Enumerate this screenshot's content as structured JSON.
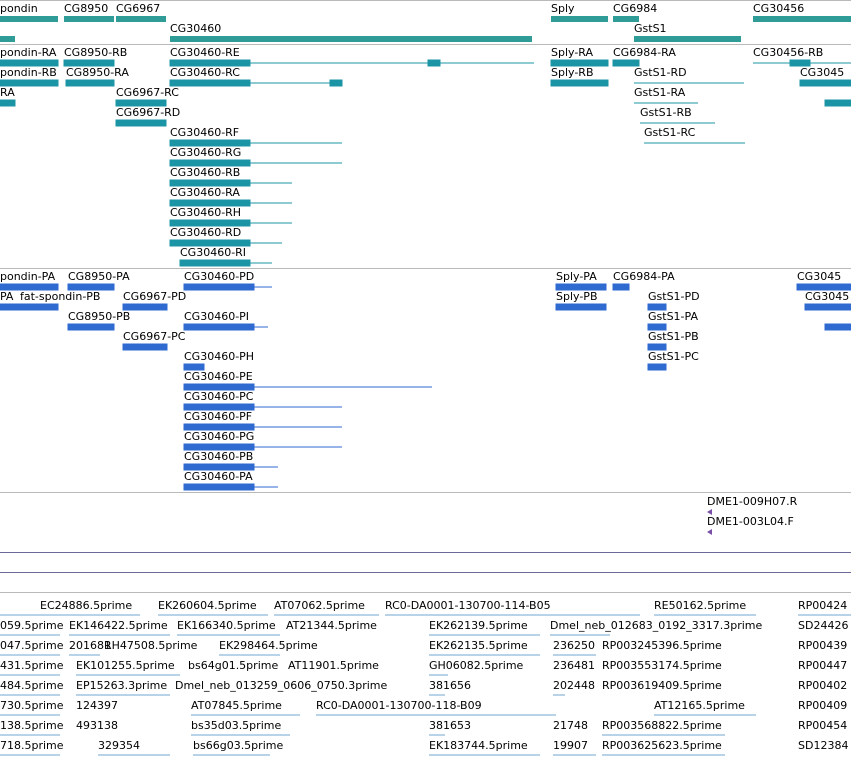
{
  "colors": {
    "gene": "#2f9c98",
    "transcript": "#1b95a6",
    "protein": "#2f6ad0",
    "clone": "#7a4fa6",
    "est": "#71a5d0",
    "separator": "#b9b9b9",
    "rule": "#6a6a9a"
  },
  "tracks": {
    "genes": [
      {
        "label": "pondin"
      },
      {
        "label": "CG8950"
      },
      {
        "label": "CG6967"
      },
      {
        "label": "CG30460"
      },
      {
        "label": "Sply"
      },
      {
        "label": "CG6984"
      },
      {
        "label": "GstS1"
      },
      {
        "label": "CG30456"
      }
    ],
    "transcripts": [
      {
        "label": "pondin-RA"
      },
      {
        "label": "CG8950-RB"
      },
      {
        "label": "CG30460-RE"
      },
      {
        "label": "Sply-RA"
      },
      {
        "label": "CG6984-RA"
      },
      {
        "label": "CG30456-RB"
      },
      {
        "label": "pondin-RB"
      },
      {
        "label": "CG8950-RA"
      },
      {
        "label": "CG30460-RC"
      },
      {
        "label": "Sply-RB"
      },
      {
        "label": "GstS1-RD"
      },
      {
        "label": "CG3045"
      },
      {
        "label": "RA"
      },
      {
        "label": "CG6967-RC"
      },
      {
        "label": "GstS1-RA"
      },
      {
        "label": "CG6967-RD"
      },
      {
        "label": "GstS1-RB"
      },
      {
        "label": "GstS1-RC"
      },
      {
        "label": "CG30460-RF"
      },
      {
        "label": "CG30460-RG"
      },
      {
        "label": "CG30460-RB"
      },
      {
        "label": "CG30460-RA"
      },
      {
        "label": "CG30460-RH"
      },
      {
        "label": "CG30460-RD"
      },
      {
        "label": "CG30460-RI"
      }
    ],
    "proteins": [
      {
        "label": "pondin-PA"
      },
      {
        "label": "CG8950-PA"
      },
      {
        "label": "CG30460-PD"
      },
      {
        "label": "Sply-PA"
      },
      {
        "label": "CG6984-PA"
      },
      {
        "label": "CG3045"
      },
      {
        "label": "PA"
      },
      {
        "label": "fat-spondin-PB"
      },
      {
        "label": "CG6967-PD"
      },
      {
        "label": "Sply-PB"
      },
      {
        "label": "GstS1-PD"
      },
      {
        "label": "CG3045"
      },
      {
        "label": "CG8950-PB"
      },
      {
        "label": "CG30460-PI"
      },
      {
        "label": "GstS1-PA"
      },
      {
        "label": "CG6967-PC"
      },
      {
        "label": "GstS1-PB"
      },
      {
        "label": "GstS1-PC"
      },
      {
        "label": "CG30460-PH"
      },
      {
        "label": "CG30460-PE"
      },
      {
        "label": "CG30460-PC"
      },
      {
        "label": "CG30460-PF"
      },
      {
        "label": "CG30460-PG"
      },
      {
        "label": "CG30460-PB"
      },
      {
        "label": "CG30460-PA"
      }
    ],
    "clones": [
      {
        "label": "DME1-009H07.R"
      },
      {
        "label": "DME1-003L04.F"
      }
    ],
    "ests": [
      {
        "label": "EC24886.5prime"
      },
      {
        "label": "EK260604.5prime"
      },
      {
        "label": "AT07062.5prime"
      },
      {
        "label": "RC0-DA0001-130700-114-B05"
      },
      {
        "label": "RE50162.5prime"
      },
      {
        "label": "RP00424"
      },
      {
        "label": "059.5prime"
      },
      {
        "label": "EK146422.5prime"
      },
      {
        "label": "EK166340.5prime"
      },
      {
        "label": "AT21344.5prime"
      },
      {
        "label": "EK262139.5prime"
      },
      {
        "label": "Dmel_neb_012683_0192_3317.3prime"
      },
      {
        "label": "SD24426"
      },
      {
        "label": "047.5prime"
      },
      {
        "label": "201681"
      },
      {
        "label": "RH47508.5prime"
      },
      {
        "label": "EK298464.5prime"
      },
      {
        "label": "EK262135.5prime"
      },
      {
        "label": "236250"
      },
      {
        "label": "RP003245396.5prime"
      },
      {
        "label": "RP00439"
      },
      {
        "label": "431.5prime"
      },
      {
        "label": "EK101255.5prime"
      },
      {
        "label": "bs64g01.5prime"
      },
      {
        "label": "AT11901.5prime"
      },
      {
        "label": "GH06082.5prime"
      },
      {
        "label": "236481"
      },
      {
        "label": "RP003553174.5prime"
      },
      {
        "label": "RP00447"
      },
      {
        "label": "484.5prime"
      },
      {
        "label": "EP15263.3prime"
      },
      {
        "label": "Dmel_neb_013259_0606_0750.3prime"
      },
      {
        "label": "381656"
      },
      {
        "label": "202448"
      },
      {
        "label": "RP003619409.5prime"
      },
      {
        "label": "RP00402"
      },
      {
        "label": "730.5prime"
      },
      {
        "label": "124397"
      },
      {
        "label": "AT07845.5prime"
      },
      {
        "label": "RC0-DA0001-130700-118-B09"
      },
      {
        "label": "AT12165.5prime"
      },
      {
        "label": "RP00409"
      },
      {
        "label": "138.5prime"
      },
      {
        "label": "493138"
      },
      {
        "label": "bs35d03.5prime"
      },
      {
        "label": "381653"
      },
      {
        "label": "21748"
      },
      {
        "label": "RP003568822.5prime"
      },
      {
        "label": "RP00454"
      },
      {
        "label": "718.5prime"
      },
      {
        "label": "329354"
      },
      {
        "label": "bs66g03.5prime"
      },
      {
        "label": "EK183744.5prime"
      },
      {
        "label": "19907"
      },
      {
        "label": "RP003625623.5prime"
      },
      {
        "label": "SD12384"
      }
    ]
  }
}
